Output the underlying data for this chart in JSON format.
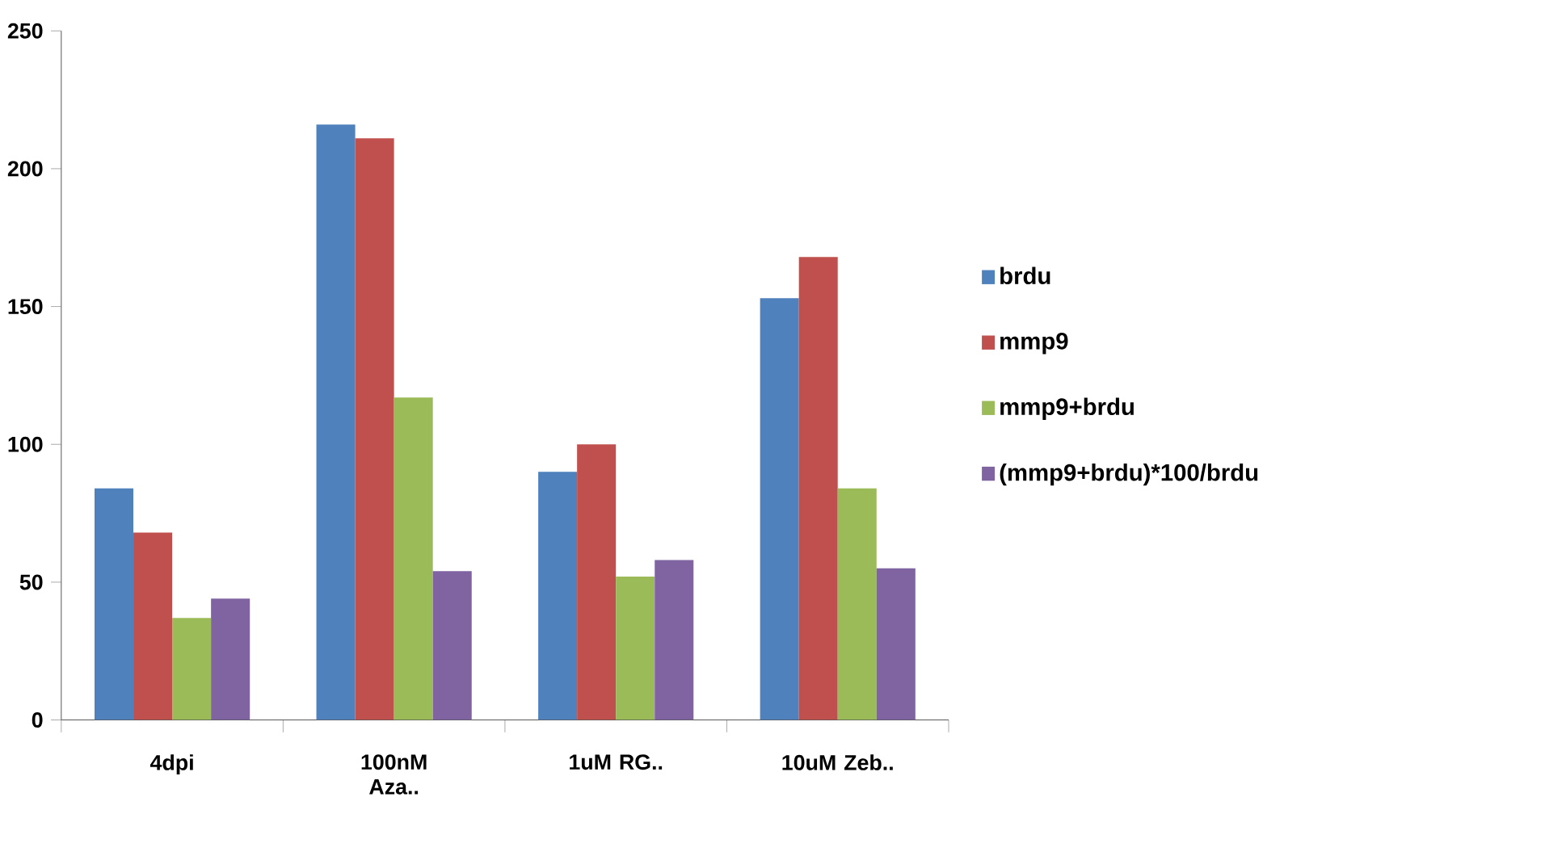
{
  "chart_data": {
    "type": "bar",
    "categories": [
      "4dpi",
      "100nM Aza..",
      "1uM RG..",
      "10uM Zeb.."
    ],
    "series": [
      {
        "name": "brdu",
        "color": "#4f81bd",
        "values": [
          84,
          216,
          90,
          153
        ]
      },
      {
        "name": "mmp9",
        "color": "#c0504d",
        "values": [
          68,
          211,
          100,
          168
        ]
      },
      {
        "name": "mmp9+brdu",
        "color": "#9bbb59",
        "values": [
          37,
          117,
          52,
          84
        ]
      },
      {
        "name": "(mmp9+brdu)*100/brdu",
        "color": "#8064a2",
        "values": [
          44,
          54,
          58,
          55
        ]
      }
    ],
    "ylim": [
      0,
      250
    ],
    "yticks": [
      0,
      50,
      100,
      150,
      200,
      250
    ],
    "grid": false,
    "legend": "right"
  }
}
